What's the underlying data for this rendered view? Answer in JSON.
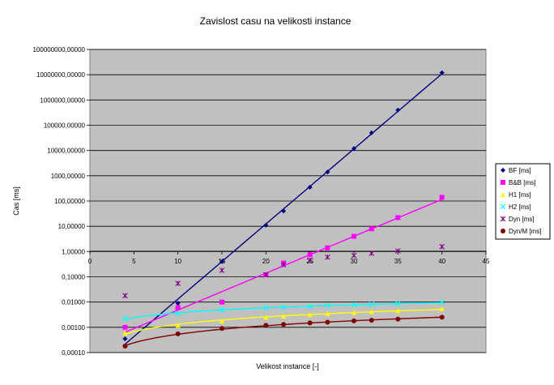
{
  "chart_data": {
    "type": "scatter",
    "title": "Zavislost casu na velikosti instance",
    "xlabel": "Velikost instance [-]",
    "ylabel": "Cas [ms]",
    "xlim": [
      0,
      45
    ],
    "ylim": [
      0.0001,
      100000000
    ],
    "yscale": "log",
    "grid": "horizontal",
    "legend_position": "right",
    "plot_background": "#c0c0c0",
    "x_ticks": [
      "0",
      "5",
      "10",
      "15",
      "20",
      "25",
      "30",
      "35",
      "40",
      "45"
    ],
    "y_ticks": [
      "100000000,00000",
      "10000000,00000",
      "1000000,00000",
      "100000,00000",
      "10000,00000",
      "1000,00000",
      "100,00000",
      "10,00000",
      "1,00000",
      "0,10000",
      "0,01000",
      "0,00100",
      "0,00010"
    ],
    "series": [
      {
        "name": "BF [ms]",
        "color": "#000080",
        "marker": "diamond",
        "x": [
          4,
          10,
          15,
          20,
          22,
          25,
          27,
          30,
          32,
          35,
          40
        ],
        "y": [
          0.00035,
          0.009,
          0.4,
          11,
          40,
          350,
          1400,
          12000,
          50000,
          400000,
          12000000
        ],
        "trend": "exponential"
      },
      {
        "name": "B&B [ms]",
        "color": "#ff00ff",
        "marker": "square",
        "x": [
          4,
          10,
          15,
          20,
          22,
          25,
          27,
          30,
          32,
          35,
          40
        ],
        "y": [
          0.001,
          0.006,
          0.01,
          0.12,
          0.35,
          0.75,
          1.4,
          4,
          8,
          22,
          140
        ],
        "trend": "exponential"
      },
      {
        "name": "H1 [ms]",
        "color": "#ffff00",
        "marker": "triangle",
        "x": [
          4,
          10,
          15,
          20,
          22,
          25,
          27,
          30,
          32,
          35,
          40
        ],
        "y": [
          0.0006,
          0.0012,
          0.0018,
          0.0025,
          0.0028,
          0.0032,
          0.0035,
          0.0039,
          0.0042,
          0.0046,
          0.0055
        ],
        "trend": "power"
      },
      {
        "name": "H2 [ms]",
        "color": "#00ffff",
        "marker": "x",
        "x": [
          4,
          10,
          15,
          20,
          22,
          25,
          27,
          30,
          32,
          35,
          40
        ],
        "y": [
          0.0022,
          0.0035,
          0.0048,
          0.0058,
          0.0062,
          0.0068,
          0.0072,
          0.0078,
          0.0082,
          0.0088,
          0.0098
        ],
        "trend": "power"
      },
      {
        "name": "Dyn [ms]",
        "color": "#800080",
        "marker": "star",
        "x": [
          4,
          10,
          15,
          20,
          22,
          25,
          27,
          30,
          32,
          35,
          40
        ],
        "y": [
          0.018,
          0.055,
          0.18,
          0.12,
          0.3,
          0.45,
          0.6,
          0.7,
          0.85,
          1.05,
          1.55
        ],
        "trend": "none"
      },
      {
        "name": "Dyn/M [ms]",
        "color": "#800000",
        "marker": "circle",
        "x": [
          4,
          10,
          15,
          20,
          22,
          25,
          27,
          30,
          32,
          35,
          40
        ],
        "y": [
          0.00018,
          0.00055,
          0.0009,
          0.0012,
          0.0013,
          0.0015,
          0.0016,
          0.0018,
          0.0019,
          0.0021,
          0.0025
        ],
        "trend": "power"
      }
    ]
  }
}
